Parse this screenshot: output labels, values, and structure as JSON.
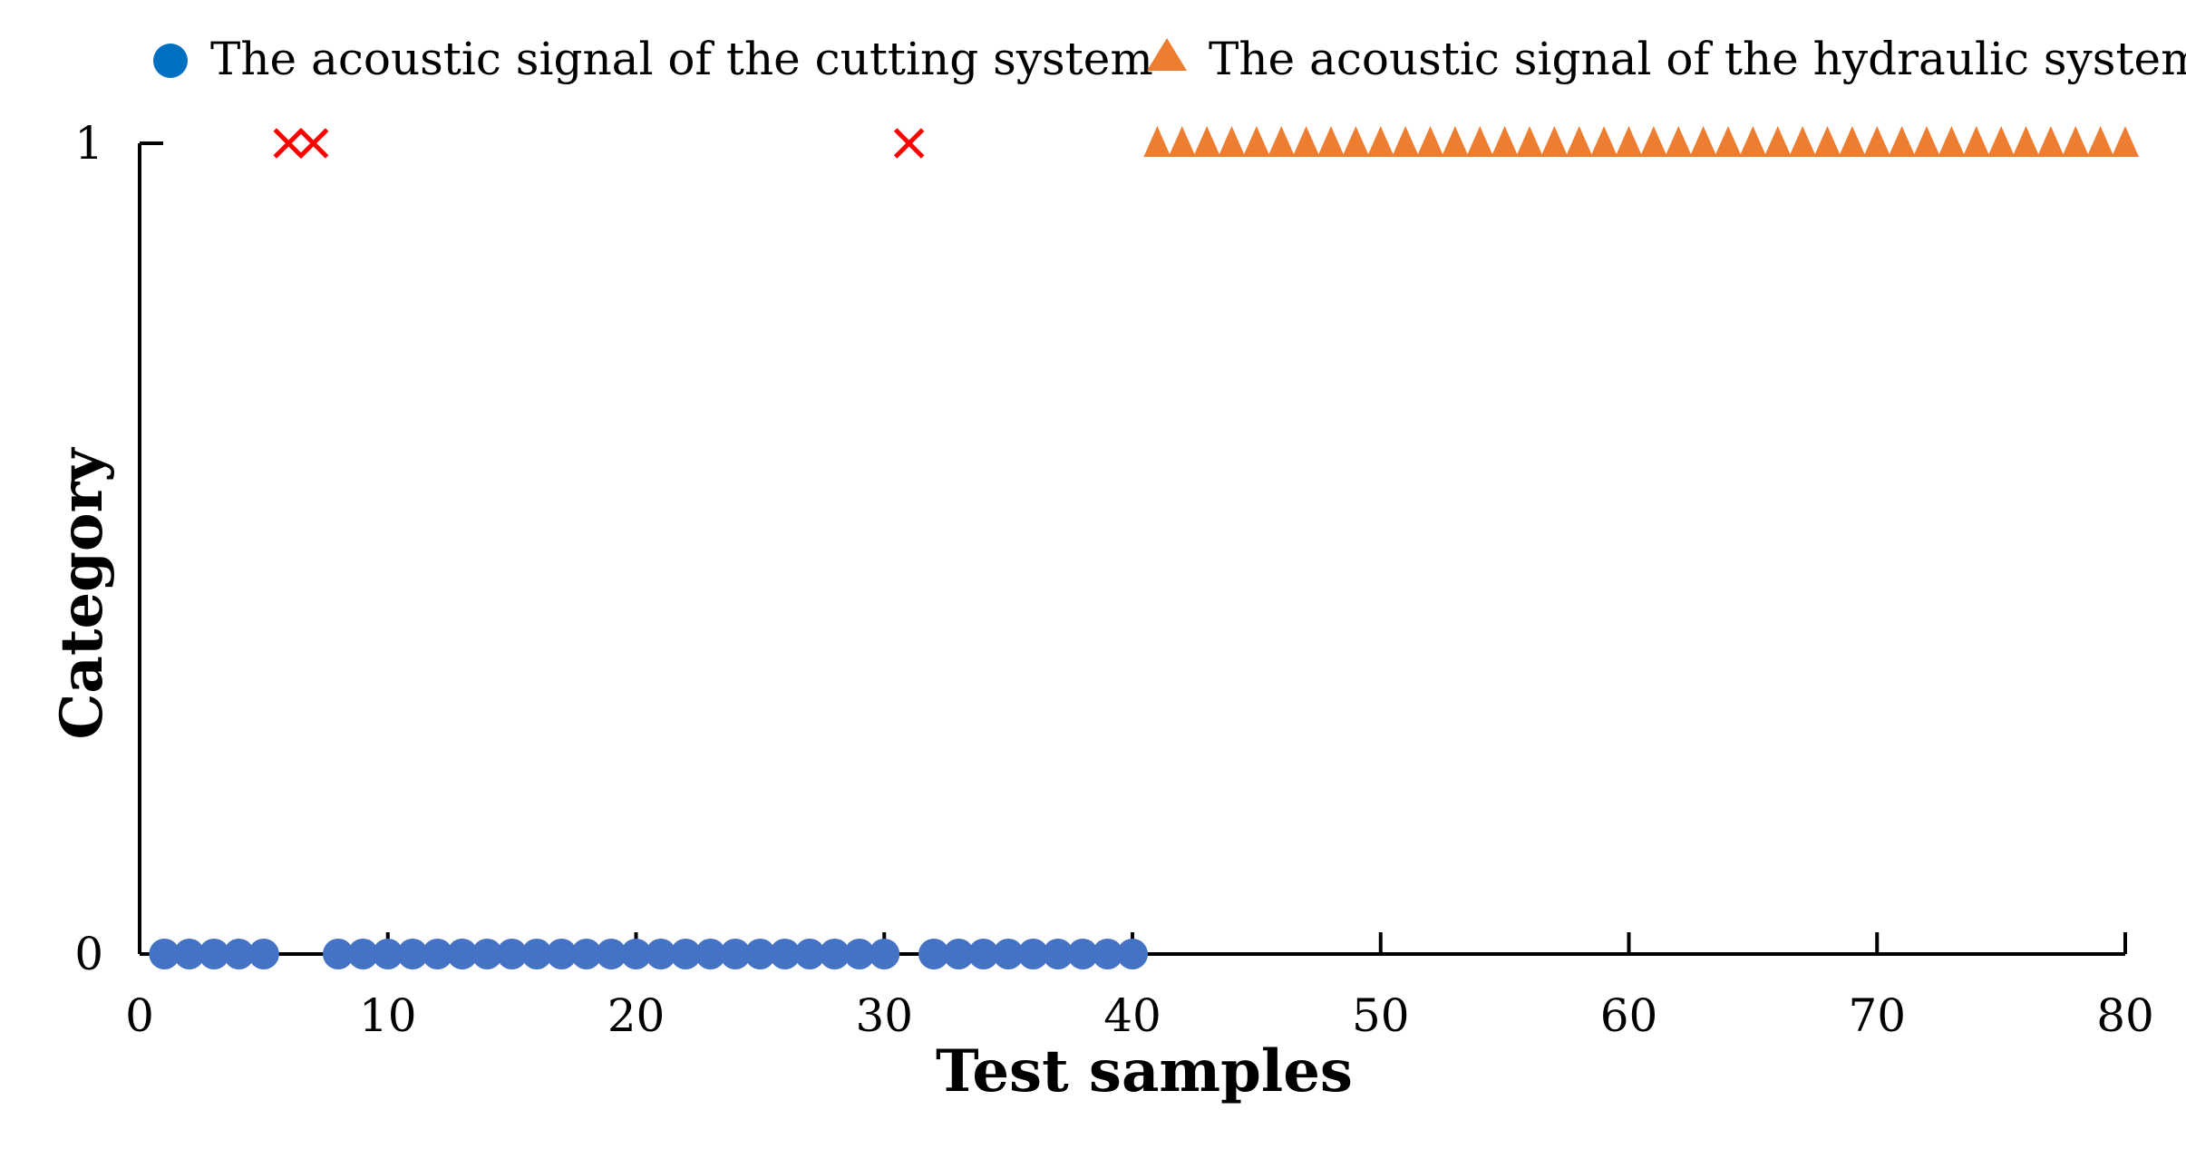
{
  "colors": {
    "cutting_marker": "#4472C4",
    "cutting_legend_marker": "#0070C0",
    "hydraulic_marker": "#ED7D31",
    "misclassified_marker": "#FF0000",
    "axis": "#000000"
  },
  "chart_data": {
    "type": "scatter",
    "xlabel": "Test samples",
    "ylabel": "Category",
    "xlim": [
      0,
      80
    ],
    "ylim": [
      0,
      1
    ],
    "x_ticks": [
      0,
      10,
      20,
      30,
      40,
      50,
      60,
      70,
      80
    ],
    "x_tick_labels": [
      "0",
      "10",
      "20",
      "30",
      "40",
      "50",
      "60",
      "70",
      "80"
    ],
    "y_ticks": [
      0,
      1
    ],
    "y_tick_labels": [
      "0",
      "1"
    ],
    "grid": false,
    "legend_position": "top",
    "legend": [
      {
        "label": "The acoustic signal of the cutting system",
        "marker": "circle"
      },
      {
        "label": "The acoustic signal of the hydraulic system",
        "marker": "triangle"
      }
    ],
    "series": [
      {
        "name": "The acoustic signal of the cutting system",
        "marker": "circle",
        "points": [
          {
            "x": 1,
            "y": 0
          },
          {
            "x": 2,
            "y": 0
          },
          {
            "x": 3,
            "y": 0
          },
          {
            "x": 4,
            "y": 0
          },
          {
            "x": 5,
            "y": 0
          },
          {
            "x": 8,
            "y": 0
          },
          {
            "x": 9,
            "y": 0
          },
          {
            "x": 10,
            "y": 0
          },
          {
            "x": 11,
            "y": 0
          },
          {
            "x": 12,
            "y": 0
          },
          {
            "x": 13,
            "y": 0
          },
          {
            "x": 14,
            "y": 0
          },
          {
            "x": 15,
            "y": 0
          },
          {
            "x": 16,
            "y": 0
          },
          {
            "x": 17,
            "y": 0
          },
          {
            "x": 18,
            "y": 0
          },
          {
            "x": 19,
            "y": 0
          },
          {
            "x": 20,
            "y": 0
          },
          {
            "x": 21,
            "y": 0
          },
          {
            "x": 22,
            "y": 0
          },
          {
            "x": 23,
            "y": 0
          },
          {
            "x": 24,
            "y": 0
          },
          {
            "x": 25,
            "y": 0
          },
          {
            "x": 26,
            "y": 0
          },
          {
            "x": 27,
            "y": 0
          },
          {
            "x": 28,
            "y": 0
          },
          {
            "x": 29,
            "y": 0
          },
          {
            "x": 30,
            "y": 0
          },
          {
            "x": 32,
            "y": 0
          },
          {
            "x": 33,
            "y": 0
          },
          {
            "x": 34,
            "y": 0
          },
          {
            "x": 35,
            "y": 0
          },
          {
            "x": 36,
            "y": 0
          },
          {
            "x": 37,
            "y": 0
          },
          {
            "x": 38,
            "y": 0
          },
          {
            "x": 39,
            "y": 0
          },
          {
            "x": 40,
            "y": 0
          }
        ]
      },
      {
        "name": "The acoustic signal of the hydraulic system",
        "marker": "triangle",
        "points": [
          {
            "x": 41,
            "y": 1
          },
          {
            "x": 42,
            "y": 1
          },
          {
            "x": 43,
            "y": 1
          },
          {
            "x": 44,
            "y": 1
          },
          {
            "x": 45,
            "y": 1
          },
          {
            "x": 46,
            "y": 1
          },
          {
            "x": 47,
            "y": 1
          },
          {
            "x": 48,
            "y": 1
          },
          {
            "x": 49,
            "y": 1
          },
          {
            "x": 50,
            "y": 1
          },
          {
            "x": 51,
            "y": 1
          },
          {
            "x": 52,
            "y": 1
          },
          {
            "x": 53,
            "y": 1
          },
          {
            "x": 54,
            "y": 1
          },
          {
            "x": 55,
            "y": 1
          },
          {
            "x": 56,
            "y": 1
          },
          {
            "x": 57,
            "y": 1
          },
          {
            "x": 58,
            "y": 1
          },
          {
            "x": 59,
            "y": 1
          },
          {
            "x": 60,
            "y": 1
          },
          {
            "x": 61,
            "y": 1
          },
          {
            "x": 62,
            "y": 1
          },
          {
            "x": 63,
            "y": 1
          },
          {
            "x": 64,
            "y": 1
          },
          {
            "x": 65,
            "y": 1
          },
          {
            "x": 66,
            "y": 1
          },
          {
            "x": 67,
            "y": 1
          },
          {
            "x": 68,
            "y": 1
          },
          {
            "x": 69,
            "y": 1
          },
          {
            "x": 70,
            "y": 1
          },
          {
            "x": 71,
            "y": 1
          },
          {
            "x": 72,
            "y": 1
          },
          {
            "x": 73,
            "y": 1
          },
          {
            "x": 74,
            "y": 1
          },
          {
            "x": 75,
            "y": 1
          },
          {
            "x": 76,
            "y": 1
          },
          {
            "x": 77,
            "y": 1
          },
          {
            "x": 78,
            "y": 1
          },
          {
            "x": 79,
            "y": 1
          },
          {
            "x": 80,
            "y": 1
          }
        ]
      },
      {
        "marker": "cross",
        "points": [
          {
            "x": 6,
            "y": 1
          },
          {
            "x": 7,
            "y": 1
          },
          {
            "x": 31,
            "y": 1
          }
        ]
      }
    ]
  }
}
